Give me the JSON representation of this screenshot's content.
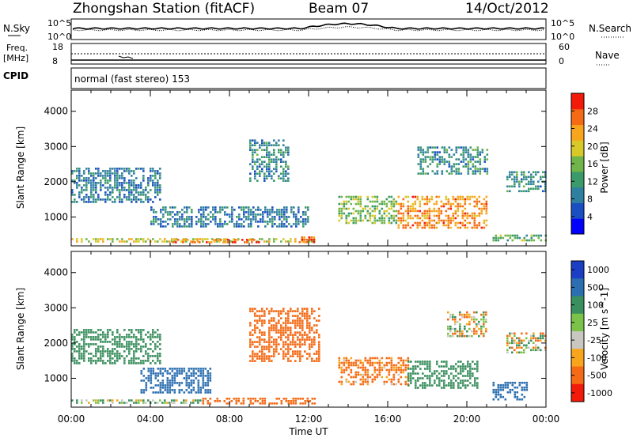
{
  "header": {
    "station_title": "Zhongshan Station (fitACF)",
    "beam": "Beam 07",
    "date": "14/Oct/2012"
  },
  "summary_panels": {
    "nsky_label": "N.Sky",
    "nsky_ticks": [
      "10^5",
      "10^0"
    ],
    "nsearch_label": "N.Search",
    "nsearch_ticks": [
      "10^5",
      "10^0"
    ],
    "freq_label": "Freq.",
    "freq_unit": "[MHz]",
    "freq_ticks": [
      "18",
      "8"
    ],
    "nave_label": "Nave",
    "nave_ticks": [
      "60",
      "0"
    ],
    "cpid_label": "CPID",
    "cpid_value": "normal (fast stereo) 153"
  },
  "chart_data": [
    {
      "type": "heatmap",
      "title": "",
      "parameter": "Power",
      "xlabel": "",
      "ylabel": "Slant Range [km]",
      "x_ticks": [
        "00:00",
        "04:00",
        "08:00",
        "12:00",
        "16:00",
        "20:00",
        "00:00"
      ],
      "x_range_hours": [
        0,
        24
      ],
      "y_ticks": [
        1000,
        2000,
        3000,
        4000
      ],
      "ylim_km": [
        180,
        4600
      ],
      "colorbar": {
        "label": "Power [dB]",
        "range": [
          0,
          32
        ],
        "ticks": [
          4,
          8,
          12,
          16,
          20,
          24,
          28
        ],
        "colors": [
          "#0000ff",
          "#1a4fc1",
          "#2f7fa0",
          "#3a9a6a",
          "#6fb54a",
          "#d9c928",
          "#f7a51c",
          "#f56a14",
          "#f21a0a"
        ]
      },
      "features": [
        {
          "t_start": 0.0,
          "t_end": 12.3,
          "range_km": [
            280,
            400
          ],
          "level_db": 20,
          "note": "near-range band"
        },
        {
          "t_start": 5.0,
          "t_end": 9.5,
          "range_km": [
            280,
            380
          ],
          "level_db": 28
        },
        {
          "t_start": 11.5,
          "t_end": 12.3,
          "range_km": [
            300,
            450
          ],
          "level_db": 28
        },
        {
          "t_start": 0.0,
          "t_end": 4.5,
          "range_km": [
            1400,
            2400
          ],
          "level_db": 8
        },
        {
          "t_start": 4.0,
          "t_end": 12.0,
          "range_km": [
            700,
            1300
          ],
          "level_db": 8
        },
        {
          "t_start": 9.0,
          "t_end": 11.0,
          "range_km": [
            2000,
            3200
          ],
          "level_db": 10
        },
        {
          "t_start": 13.5,
          "t_end": 16.5,
          "range_km": [
            800,
            1600
          ],
          "level_db": 16
        },
        {
          "t_start": 16.5,
          "t_end": 21.0,
          "range_km": [
            700,
            1600
          ],
          "level_db": 26
        },
        {
          "t_start": 17.5,
          "t_end": 21.0,
          "range_km": [
            2200,
            3000
          ],
          "level_db": 10
        },
        {
          "t_start": 21.3,
          "t_end": 24.0,
          "range_km": [
            300,
            500
          ],
          "level_db": 14
        },
        {
          "t_start": 22.0,
          "t_end": 24.0,
          "range_km": [
            1700,
            2300
          ],
          "level_db": 10
        }
      ]
    },
    {
      "type": "heatmap",
      "title": "",
      "parameter": "Velocity",
      "xlabel": "Time UT",
      "ylabel": "Slant Range [km]",
      "x_ticks": [
        "00:00",
        "04:00",
        "08:00",
        "12:00",
        "16:00",
        "20:00",
        "00:00"
      ],
      "x_range_hours": [
        0,
        24
      ],
      "y_ticks": [
        1000,
        2000,
        3000,
        4000
      ],
      "ylim_km": [
        180,
        4600
      ],
      "colorbar": {
        "label": "Velocity [m s^-1]",
        "ticks": [
          "1000",
          "500",
          "100",
          "25",
          "-25",
          "-100",
          "-500",
          "-1000"
        ],
        "colors": [
          "#1a3fc4",
          "#2b6fb0",
          "#3a8f5e",
          "#7cc24a",
          "#c8c8c0",
          "#f7a51c",
          "#f56a14",
          "#f21a0a"
        ]
      },
      "features": [
        {
          "t_start": 0.0,
          "t_end": 6.5,
          "range_km": [
            280,
            400
          ],
          "velocity": 100,
          "note": "green near range"
        },
        {
          "t_start": 6.5,
          "t_end": 12.3,
          "range_km": [
            280,
            450
          ],
          "velocity": -300,
          "note": "orange near range"
        },
        {
          "t_start": 0.0,
          "t_end": 4.5,
          "range_km": [
            1400,
            2400
          ],
          "velocity": 300
        },
        {
          "t_start": 3.5,
          "t_end": 7.0,
          "range_km": [
            600,
            1300
          ],
          "velocity": 700
        },
        {
          "t_start": 9.0,
          "t_end": 12.5,
          "range_km": [
            1500,
            3000
          ],
          "velocity": -300
        },
        {
          "t_start": 13.5,
          "t_end": 17.0,
          "range_km": [
            800,
            1600
          ],
          "velocity": -200
        },
        {
          "t_start": 17.0,
          "t_end": 20.5,
          "range_km": [
            700,
            1500
          ],
          "velocity": 300
        },
        {
          "t_start": 19.0,
          "t_end": 21.0,
          "range_km": [
            2200,
            2900
          ],
          "velocity": 0
        },
        {
          "t_start": 21.3,
          "t_end": 23.0,
          "range_km": [
            400,
            900
          ],
          "velocity": 800
        },
        {
          "t_start": 22.0,
          "t_end": 24.0,
          "range_km": [
            1700,
            2300
          ],
          "velocity": 0
        }
      ]
    }
  ]
}
